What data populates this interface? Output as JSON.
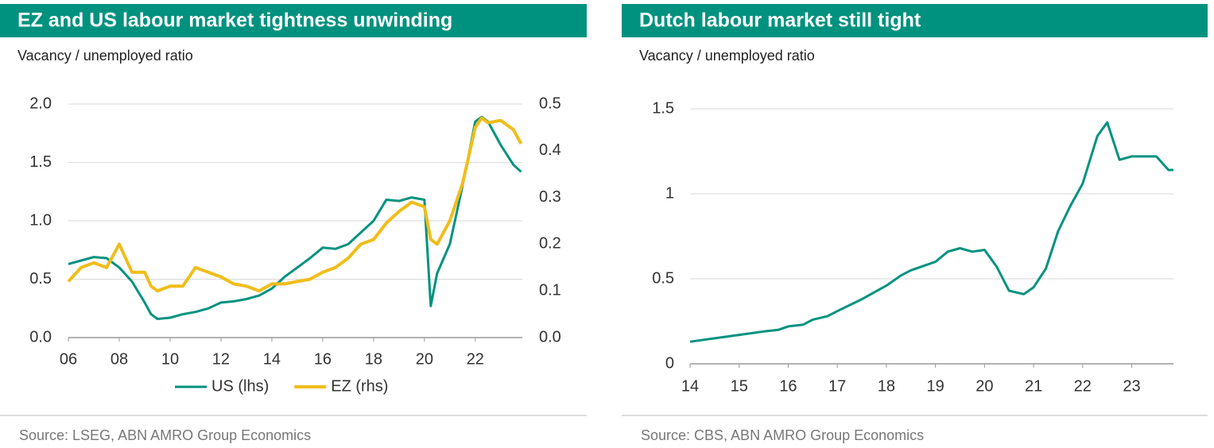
{
  "chart_data": [
    {
      "type": "line",
      "title": "EZ and US labour market tightness unwinding",
      "subtitle": "Vacancy / unemployed ratio",
      "source": "Source: LSEG, ABN AMRO Group Economics",
      "x": [
        2006,
        2006.5,
        2007,
        2007.5,
        2008,
        2008.5,
        2009,
        2009.25,
        2009.5,
        2010,
        2010.5,
        2011,
        2011.5,
        2012,
        2012.5,
        2013,
        2013.5,
        2014,
        2014.5,
        2015,
        2015.5,
        2016,
        2016.5,
        2017,
        2017.5,
        2018,
        2018.5,
        2019,
        2019.5,
        2020,
        2020.25,
        2020.5,
        2021,
        2021.5,
        2022,
        2022.25,
        2022.5,
        2023,
        2023.5,
        2023.8
      ],
      "series": [
        {
          "name": "US (lhs)",
          "color": "#00927f",
          "axis": "y",
          "values": [
            0.63,
            0.66,
            0.69,
            0.68,
            0.6,
            0.48,
            0.3,
            0.2,
            0.16,
            0.17,
            0.2,
            0.22,
            0.25,
            0.3,
            0.31,
            0.33,
            0.36,
            0.42,
            0.52,
            0.6,
            0.68,
            0.77,
            0.76,
            0.8,
            0.9,
            1.0,
            1.18,
            1.17,
            1.2,
            1.18,
            0.27,
            0.55,
            0.8,
            1.3,
            1.85,
            1.89,
            1.85,
            1.65,
            1.48,
            1.42
          ]
        },
        {
          "name": "EZ (rhs)",
          "color": "#f0bd1a",
          "axis": "y2",
          "values": [
            0.12,
            0.15,
            0.16,
            0.15,
            0.2,
            0.14,
            0.14,
            0.11,
            0.1,
            0.11,
            0.11,
            0.15,
            0.14,
            0.13,
            0.115,
            0.11,
            0.1,
            0.115,
            0.115,
            0.12,
            0.125,
            0.14,
            0.15,
            0.17,
            0.2,
            0.21,
            0.245,
            0.27,
            0.29,
            0.28,
            0.21,
            0.2,
            0.25,
            0.33,
            0.45,
            0.47,
            0.46,
            0.465,
            0.445,
            0.415
          ]
        }
      ],
      "xlim": [
        2006,
        2023.85
      ],
      "xticks": [
        {
          "value": 2006,
          "label": "06"
        },
        {
          "value": 2008,
          "label": "08"
        },
        {
          "value": 2010,
          "label": "10"
        },
        {
          "value": 2012,
          "label": "12"
        },
        {
          "value": 2014,
          "label": "14"
        },
        {
          "value": 2016,
          "label": "16"
        },
        {
          "value": 2018,
          "label": "18"
        },
        {
          "value": 2020,
          "label": "20"
        },
        {
          "value": 2022,
          "label": "22"
        }
      ],
      "ylim": [
        0,
        2
      ],
      "yticks": [
        {
          "value": 0,
          "label": "0.0"
        },
        {
          "value": 0.5,
          "label": "0.5"
        },
        {
          "value": 1,
          "label": "1.0"
        },
        {
          "value": 1.5,
          "label": "1.5"
        },
        {
          "value": 2,
          "label": "2.0"
        }
      ],
      "y2lim": [
        0,
        0.5
      ],
      "y2ticks": [
        {
          "value": 0,
          "label": "0.0"
        },
        0.1,
        0.2,
        0.3,
        0.4,
        0.5
      ],
      "grid": true,
      "legend": "bottom"
    },
    {
      "type": "line",
      "title": "Dutch labour market still tight",
      "subtitle": "Vacancy / unemployed ratio",
      "source": "Source: CBS, ABN AMRO Group Economics",
      "x": [
        2014,
        2014.5,
        2015,
        2015.5,
        2015.8,
        2016,
        2016.3,
        2016.5,
        2016.8,
        2017,
        2017.5,
        2018,
        2018.3,
        2018.5,
        2019,
        2019.25,
        2019.5,
        2019.75,
        2020,
        2020.25,
        2020.5,
        2020.8,
        2021,
        2021.25,
        2021.5,
        2021.75,
        2022,
        2022.3,
        2022.5,
        2022.75,
        2023,
        2023.5,
        2023.75,
        2023.85
      ],
      "series": [
        {
          "color": "#00927f",
          "values": [
            0.13,
            0.15,
            0.17,
            0.19,
            0.2,
            0.22,
            0.23,
            0.26,
            0.28,
            0.31,
            0.38,
            0.46,
            0.52,
            0.55,
            0.6,
            0.66,
            0.68,
            0.66,
            0.67,
            0.57,
            0.43,
            0.41,
            0.45,
            0.56,
            0.78,
            0.93,
            1.06,
            1.34,
            1.42,
            1.2,
            1.22,
            1.22,
            1.14,
            1.14
          ]
        }
      ],
      "xlim": [
        2014,
        2023.85
      ],
      "xticks": [
        {
          "value": 2014,
          "label": "14"
        },
        {
          "value": 2015,
          "label": "15"
        },
        {
          "value": 2016,
          "label": "16"
        },
        {
          "value": 2017,
          "label": "17"
        },
        {
          "value": 2018,
          "label": "18"
        },
        {
          "value": 2019,
          "label": "19"
        },
        {
          "value": 2020,
          "label": "20"
        },
        {
          "value": 2021,
          "label": "21"
        },
        {
          "value": 2022,
          "label": "22"
        },
        {
          "value": 2023,
          "label": "23"
        }
      ],
      "ylim": [
        0,
        1.5
      ],
      "yticks": [
        0,
        0.5,
        1,
        1.5
      ],
      "grid": true
    }
  ]
}
